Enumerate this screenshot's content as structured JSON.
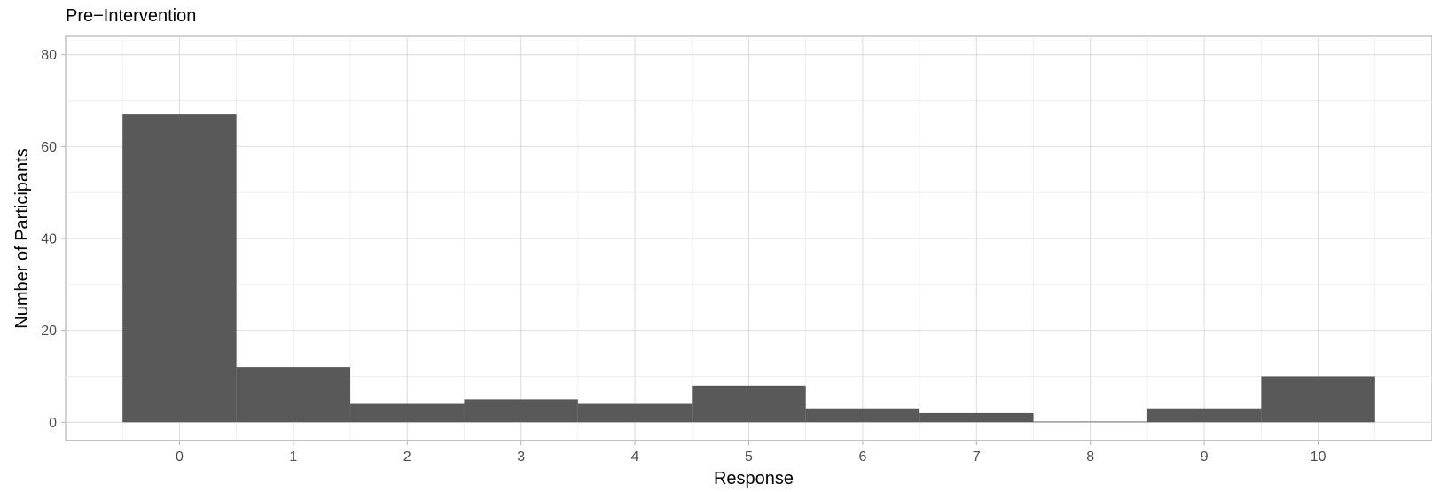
{
  "chart_data": {
    "type": "bar",
    "title": "Pre−Intervention",
    "xlabel": "Response",
    "ylabel": "Number of Participants",
    "categories": [
      "0",
      "1",
      "2",
      "3",
      "4",
      "5",
      "6",
      "7",
      "8",
      "9",
      "10"
    ],
    "values": [
      67,
      12,
      4,
      5,
      4,
      8,
      3,
      2,
      0,
      3,
      10
    ],
    "xlim": [
      -1,
      11
    ],
    "ylim": [
      -4,
      84
    ],
    "yticks": [
      0,
      20,
      40,
      60,
      80
    ],
    "grid": true,
    "legend": "none",
    "colors": {
      "bar": "#595959",
      "grid": "#dedede",
      "frame": "#b3b3b3"
    }
  }
}
